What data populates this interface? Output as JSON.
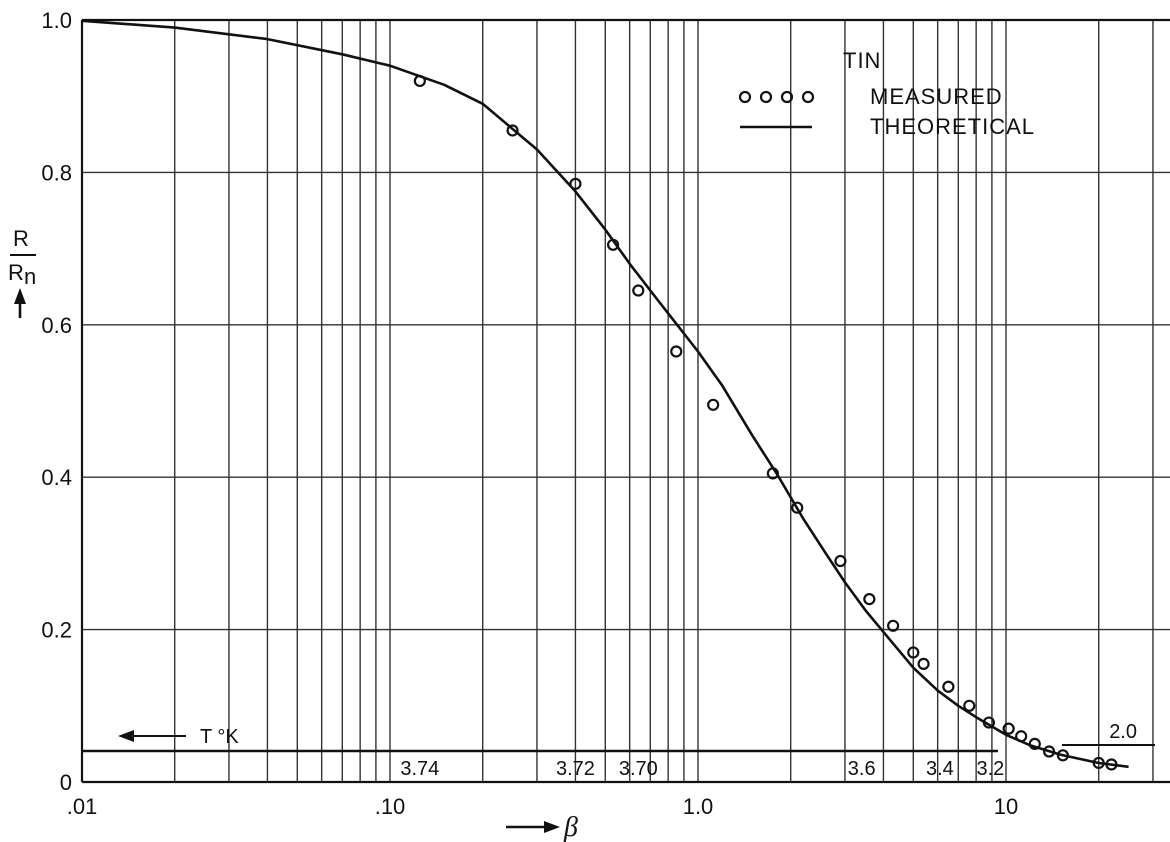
{
  "chart_data": {
    "type": "line",
    "x_scale": "log",
    "xlim": [
      0.01,
      40
    ],
    "ylim": [
      0,
      1.0
    ],
    "grid": true,
    "x_ticks": [
      {
        "value": 0.01,
        "label": ".01"
      },
      {
        "value": 0.1,
        "label": ".10"
      },
      {
        "value": 1.0,
        "label": "1.0"
      },
      {
        "value": 10,
        "label": "10"
      }
    ],
    "y_ticks": [
      {
        "value": 0,
        "label": "0"
      },
      {
        "value": 0.2,
        "label": "0.2"
      },
      {
        "value": 0.4,
        "label": "0.4"
      },
      {
        "value": 0.6,
        "label": "0.6"
      },
      {
        "value": 0.8,
        "label": "0.8"
      },
      {
        "value": 1.0,
        "label": "1.0"
      }
    ],
    "xlabel": "β",
    "ylabel": {
      "numerator": "R",
      "denominator": "R",
      "subscript": "n"
    },
    "legend": {
      "title": "TIN",
      "placement": "top-right",
      "entries": [
        {
          "marker": "circles",
          "sample": "oooo",
          "label": "MEASURED"
        },
        {
          "marker": "line",
          "label": "THEORETICAL"
        }
      ]
    },
    "temperature_axis": {
      "label": "T °K",
      "ticks": [
        {
          "beta": 0.125,
          "label": "3.74"
        },
        {
          "beta": 0.4,
          "label": "3.72"
        },
        {
          "beta": 0.64,
          "label": "3.70"
        },
        {
          "beta": 3.4,
          "label": "3.6"
        },
        {
          "beta": 6.1,
          "label": "3.4"
        },
        {
          "beta": 8.9,
          "label": "3.2"
        },
        {
          "beta": 24,
          "label": "2.0"
        }
      ]
    },
    "series": [
      {
        "name": "MEASURED",
        "style": "markers",
        "x": [
          0.125,
          0.25,
          0.4,
          0.53,
          0.64,
          0.85,
          1.12,
          1.75,
          2.1,
          2.9,
          3.6,
          4.3,
          5.0,
          5.4,
          6.5,
          7.6,
          8.8,
          10.2,
          11.2,
          12.4,
          13.8,
          15.3,
          20,
          22
        ],
        "y": [
          0.92,
          0.855,
          0.785,
          0.705,
          0.645,
          0.565,
          0.495,
          0.405,
          0.36,
          0.29,
          0.24,
          0.205,
          0.17,
          0.155,
          0.125,
          0.1,
          0.078,
          0.07,
          0.06,
          0.05,
          0.04,
          0.035,
          0.025,
          0.023
        ]
      },
      {
        "name": "THEORETICAL",
        "style": "line",
        "x": [
          0.01,
          0.02,
          0.04,
          0.07,
          0.1,
          0.15,
          0.2,
          0.3,
          0.4,
          0.5,
          0.6,
          0.7,
          0.8,
          1.0,
          1.2,
          1.5,
          1.8,
          2.2,
          2.6,
          3.0,
          3.5,
          4.0,
          5.0,
          6.0,
          7.0,
          8.0,
          10,
          12,
          15,
          20,
          25
        ],
        "y": [
          0.999,
          0.99,
          0.975,
          0.955,
          0.94,
          0.915,
          0.89,
          0.83,
          0.775,
          0.725,
          0.68,
          0.645,
          0.615,
          0.565,
          0.52,
          0.455,
          0.405,
          0.345,
          0.3,
          0.262,
          0.225,
          0.197,
          0.15,
          0.12,
          0.1,
          0.085,
          0.062,
          0.048,
          0.036,
          0.025,
          0.02
        ]
      }
    ]
  }
}
